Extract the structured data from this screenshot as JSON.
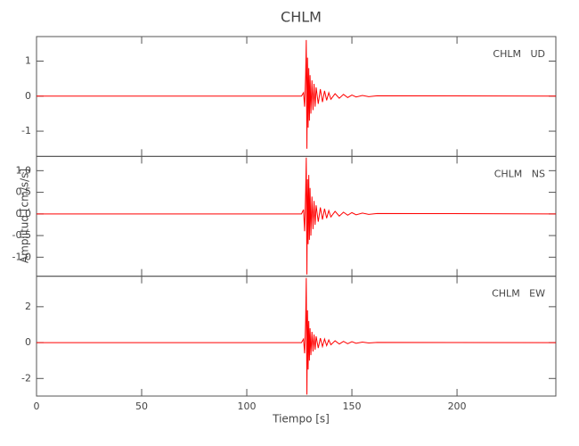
{
  "chart_data": {
    "type": "line",
    "title": "CHLM",
    "x_label": "Tiempo [s]",
    "y_label": "Amplitud [cm/s/s]",
    "color": "#ff0000",
    "x": [
      0,
      126,
      127,
      127.5,
      128,
      128.3,
      128.6,
      128.9,
      129.2,
      129.5,
      129.8,
      130.1,
      130.5,
      131,
      131.5,
      132,
      132.5,
      133,
      134,
      135,
      136,
      137,
      138,
      139,
      140,
      142,
      144,
      146,
      148,
      150,
      152,
      155,
      158,
      162,
      247
    ],
    "xlim": [
      0,
      247
    ],
    "xticks": [
      0,
      50,
      100,
      150,
      200
    ],
    "series": [
      {
        "name": "CHLM   UD",
        "ylim": [
          -1.72,
          1.7
        ],
        "yticks": [
          -1,
          0,
          1
        ],
        "values": [
          0,
          0,
          0.1,
          -0.3,
          0.6,
          1.6,
          -1.5,
          1.1,
          -0.9,
          0.8,
          -0.7,
          0.6,
          -0.5,
          0.45,
          -0.4,
          0.35,
          -0.3,
          0.25,
          -0.22,
          0.2,
          -0.17,
          0.15,
          -0.12,
          0.1,
          -0.09,
          0.07,
          -0.06,
          0.05,
          -0.04,
          0.03,
          -0.025,
          0.02,
          -0.015,
          0.01,
          0
        ]
      },
      {
        "name": "CHLM   NS",
        "ylim": [
          -1.44,
          1.33
        ],
        "yticks": [
          {
            "value": -1,
            "label": "-1.0"
          },
          {
            "value": -0.5,
            "label": "-0.5"
          },
          {
            "value": 0,
            "label": "0.0"
          },
          {
            "value": 0.5,
            "label": "0.5"
          },
          {
            "value": 1,
            "label": "1.0"
          }
        ],
        "values": [
          0,
          0,
          0.1,
          -0.4,
          0.5,
          1.3,
          -1.4,
          0.8,
          -0.7,
          0.9,
          -0.6,
          0.6,
          -0.5,
          0.4,
          -0.35,
          0.3,
          -0.25,
          0.2,
          -0.18,
          0.15,
          -0.13,
          0.12,
          -0.1,
          0.08,
          -0.07,
          0.06,
          -0.05,
          0.04,
          -0.03,
          0.03,
          -0.02,
          0.02,
          -0.01,
          0.01,
          0
        ]
      },
      {
        "name": "CHLM   EW",
        "ylim": [
          -2.98,
          3.7
        ],
        "yticks": [
          -2,
          0,
          2
        ],
        "values": [
          0,
          0,
          0.2,
          -0.6,
          1.2,
          3.6,
          -2.9,
          1.8,
          -1.5,
          1.2,
          -1.0,
          0.8,
          -0.7,
          0.6,
          -0.5,
          0.45,
          -0.4,
          0.35,
          -0.3,
          0.25,
          -0.22,
          0.2,
          -0.17,
          0.15,
          -0.12,
          0.1,
          -0.08,
          0.07,
          -0.06,
          0.05,
          -0.04,
          0.03,
          -0.02,
          0.01,
          0
        ]
      }
    ]
  }
}
